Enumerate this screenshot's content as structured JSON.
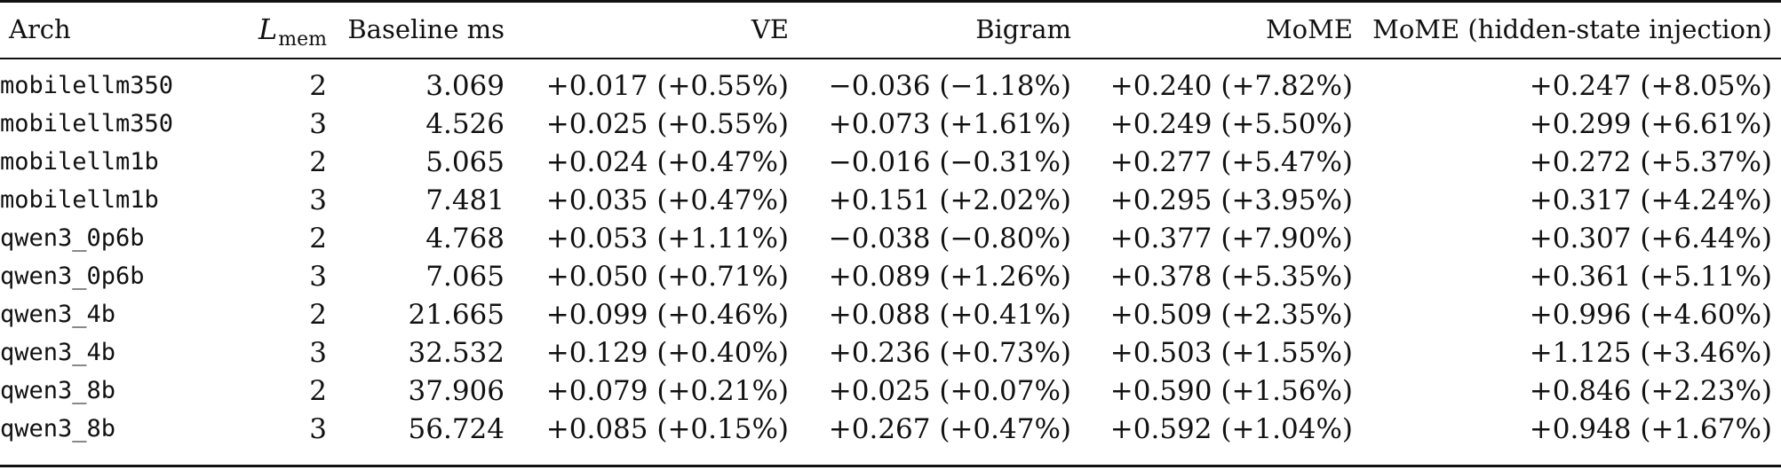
{
  "table": {
    "headers": {
      "arch": "Arch",
      "lmem_symbol": "L",
      "lmem_subscript": "mem",
      "baseline": "Baseline ms",
      "ve": "VE",
      "bigram": "Bigram",
      "mome": "MoME",
      "mome_hsi": "MoME (hidden-state injection)"
    },
    "rows": [
      {
        "arch": "mobilellm350",
        "lmem": "2",
        "baseline": "3.069",
        "ve": "+0.017 (+0.55%)",
        "bigram": "−0.036 (−1.18%)",
        "mome": "+0.240 (+7.82%)",
        "mome_hsi": "+0.247 (+8.05%)"
      },
      {
        "arch": "mobilellm350",
        "lmem": "3",
        "baseline": "4.526",
        "ve": "+0.025 (+0.55%)",
        "bigram": "+0.073 (+1.61%)",
        "mome": "+0.249 (+5.50%)",
        "mome_hsi": "+0.299 (+6.61%)"
      },
      {
        "arch": "mobilellm1b",
        "lmem": "2",
        "baseline": "5.065",
        "ve": "+0.024 (+0.47%)",
        "bigram": "−0.016 (−0.31%)",
        "mome": "+0.277 (+5.47%)",
        "mome_hsi": "+0.272 (+5.37%)"
      },
      {
        "arch": "mobilellm1b",
        "lmem": "3",
        "baseline": "7.481",
        "ve": "+0.035 (+0.47%)",
        "bigram": "+0.151 (+2.02%)",
        "mome": "+0.295 (+3.95%)",
        "mome_hsi": "+0.317 (+4.24%)"
      },
      {
        "arch": "qwen3_0p6b",
        "lmem": "2",
        "baseline": "4.768",
        "ve": "+0.053 (+1.11%)",
        "bigram": "−0.038 (−0.80%)",
        "mome": "+0.377 (+7.90%)",
        "mome_hsi": "+0.307 (+6.44%)"
      },
      {
        "arch": "qwen3_0p6b",
        "lmem": "3",
        "baseline": "7.065",
        "ve": "+0.050 (+0.71%)",
        "bigram": "+0.089 (+1.26%)",
        "mome": "+0.378 (+5.35%)",
        "mome_hsi": "+0.361 (+5.11%)"
      },
      {
        "arch": "qwen3_4b",
        "lmem": "2",
        "baseline": "21.665",
        "ve": "+0.099 (+0.46%)",
        "bigram": "+0.088 (+0.41%)",
        "mome": "+0.509 (+2.35%)",
        "mome_hsi": "+0.996 (+4.60%)"
      },
      {
        "arch": "qwen3_4b",
        "lmem": "3",
        "baseline": "32.532",
        "ve": "+0.129 (+0.40%)",
        "bigram": "+0.236 (+0.73%)",
        "mome": "+0.503 (+1.55%)",
        "mome_hsi": "+1.125 (+3.46%)"
      },
      {
        "arch": "qwen3_8b",
        "lmem": "2",
        "baseline": "37.906",
        "ve": "+0.079 (+0.21%)",
        "bigram": "+0.025 (+0.07%)",
        "mome": "+0.590 (+1.56%)",
        "mome_hsi": "+0.846 (+2.23%)"
      },
      {
        "arch": "qwen3_8b",
        "lmem": "3",
        "baseline": "56.724",
        "ve": "+0.085 (+0.15%)",
        "bigram": "+0.267 (+0.47%)",
        "mome": "+0.592 (+1.04%)",
        "mome_hsi": "+0.948 (+1.67%)"
      }
    ]
  }
}
